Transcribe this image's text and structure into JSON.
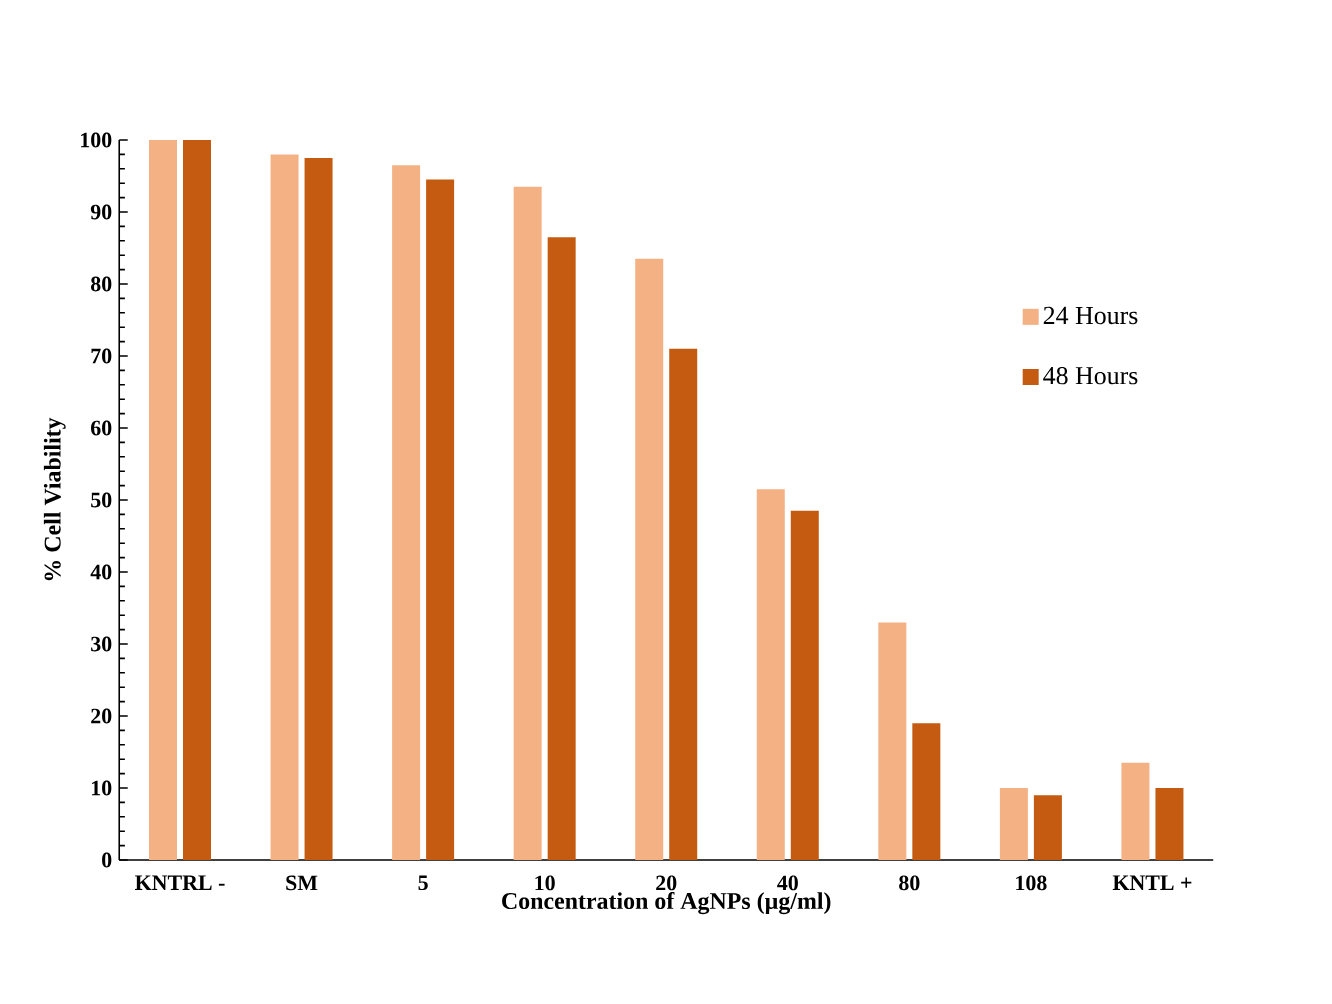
{
  "chart_data": {
    "type": "bar",
    "xlabel": "Concentration of AgNPs (µg/ml)",
    "ylabel": "% Cell Viability",
    "categories": [
      "KNTRL -",
      "SM",
      "5",
      "10",
      "20",
      "40",
      "80",
      "108",
      "KNTL +"
    ],
    "series": [
      {
        "name": "24 Hours",
        "color": "#f4b183",
        "values": [
          100,
          98,
          96.5,
          93.5,
          83.5,
          51.5,
          33,
          10,
          13.5
        ]
      },
      {
        "name": "48 Hours",
        "color": "#c55a11",
        "values": [
          100,
          97.5,
          94.5,
          86.5,
          71,
          48.5,
          19,
          9,
          10
        ]
      }
    ],
    "ylim": [
      0,
      100
    ],
    "yticks": [
      0,
      10,
      20,
      30,
      40,
      50,
      60,
      70,
      80,
      90,
      100
    ],
    "grid": false,
    "legend": "right"
  }
}
